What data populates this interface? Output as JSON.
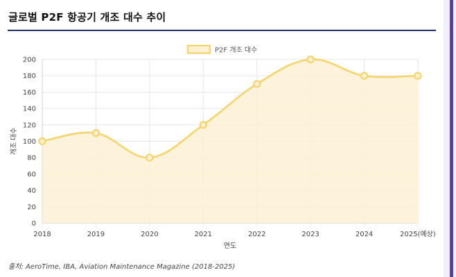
{
  "page": {
    "title": "글로벌 P2F 항공기 개조 대수 추이",
    "source": "출처: AeroTime, IBA, Aviation Maintenance Magazine (2018-2025)"
  },
  "colors": {
    "line": "#f7d36b",
    "fill": "#fdf1d3",
    "grid": "#e6e6e6",
    "rule": "#1c2a6e",
    "accent": "#5c3ea5"
  },
  "chart_data": {
    "type": "area",
    "categories": [
      "2018",
      "2019",
      "2020",
      "2021",
      "2022",
      "2023",
      "2024",
      "2025(예상)"
    ],
    "series": [
      {
        "name": "P2F 개조 대수",
        "values": [
          100,
          110,
          80,
          120,
          170,
          200,
          180,
          180
        ]
      }
    ],
    "xlabel": "연도",
    "ylabel": "개조 대수",
    "ylim": [
      0,
      200
    ],
    "yticks": [
      0,
      20,
      40,
      60,
      80,
      100,
      120,
      140,
      160,
      180,
      200
    ],
    "grid": true,
    "legend": "top-center",
    "smooth": true
  }
}
